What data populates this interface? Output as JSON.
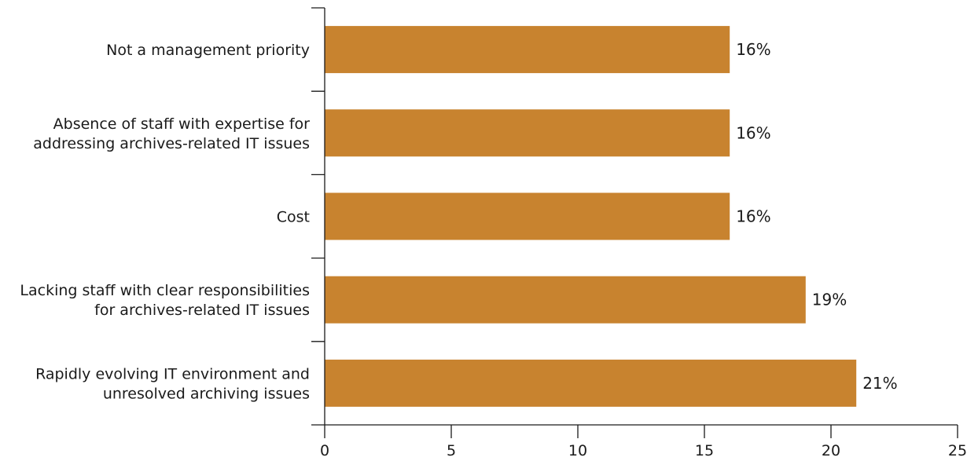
{
  "chart_data": {
    "type": "bar",
    "orientation": "horizontal",
    "categories": [
      [
        "Not a management priority"
      ],
      [
        "Absence of staff with expertise for",
        "addressing archives-related IT issues"
      ],
      [
        "Cost"
      ],
      [
        "Lacking staff with clear responsibilities",
        "for archives-related IT issues"
      ],
      [
        "Rapidly evolving IT environment and",
        "unresolved archiving issues"
      ]
    ],
    "values": [
      16,
      16,
      16,
      19,
      21
    ],
    "data_labels": [
      "16%",
      "16%",
      "16%",
      "19%",
      "21%"
    ],
    "xlim": [
      0,
      25
    ],
    "xticks": [
      0,
      5,
      10,
      15,
      20,
      25
    ],
    "title": "",
    "xlabel": "",
    "ylabel": "",
    "grid": false,
    "legend": "none",
    "colors": {
      "bar": "#c8832f",
      "axis": "#1a1a1a"
    }
  }
}
